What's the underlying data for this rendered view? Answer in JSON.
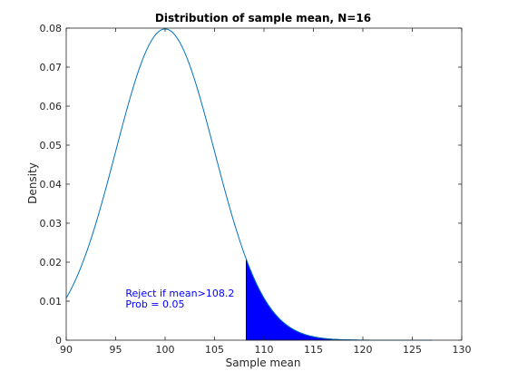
{
  "chart_data": {
    "type": "line",
    "title": "Distribution of sample mean, N=16",
    "xlabel": "Sample mean",
    "ylabel": "Density",
    "xlim": [
      90,
      130
    ],
    "ylim": [
      0,
      0.08
    ],
    "xticks": [
      "90",
      "95",
      "100",
      "105",
      "110",
      "115",
      "120",
      "125",
      "130"
    ],
    "yticks": [
      "0",
      "0.01",
      "0.02",
      "0.03",
      "0.04",
      "0.05",
      "0.06",
      "0.07",
      "0.08"
    ],
    "grid": false,
    "distribution": {
      "family": "normal",
      "mean": 100,
      "sd": 5
    },
    "x_range_plotted": [
      90,
      127
    ],
    "series": [
      {
        "x": [
          90,
          92,
          94,
          96,
          98,
          100,
          102,
          104,
          106,
          108,
          110,
          112,
          114,
          116,
          118,
          120,
          122,
          124,
          126,
          127
        ],
        "values": [
          0.0108,
          0.0224,
          0.0388,
          0.0579,
          0.0737,
          0.0798,
          0.0737,
          0.0579,
          0.0388,
          0.0224,
          0.0108,
          0.0045,
          0.0016,
          0.0005,
          0.0001,
          0.0,
          0.0,
          0.0,
          0.0,
          0.0
        ]
      }
    ],
    "shaded_region": {
      "x_from": 108.2,
      "x_to": 127,
      "color": "#0000ff"
    },
    "line_color": "#0072bd",
    "annotations": [
      {
        "text": "Reject if mean>108.2",
        "x": 96,
        "y": 0.0112,
        "color": "#0000ff"
      },
      {
        "text": "Prob = 0.05",
        "x": 96,
        "y": 0.0084,
        "color": "#0000ff"
      }
    ]
  }
}
